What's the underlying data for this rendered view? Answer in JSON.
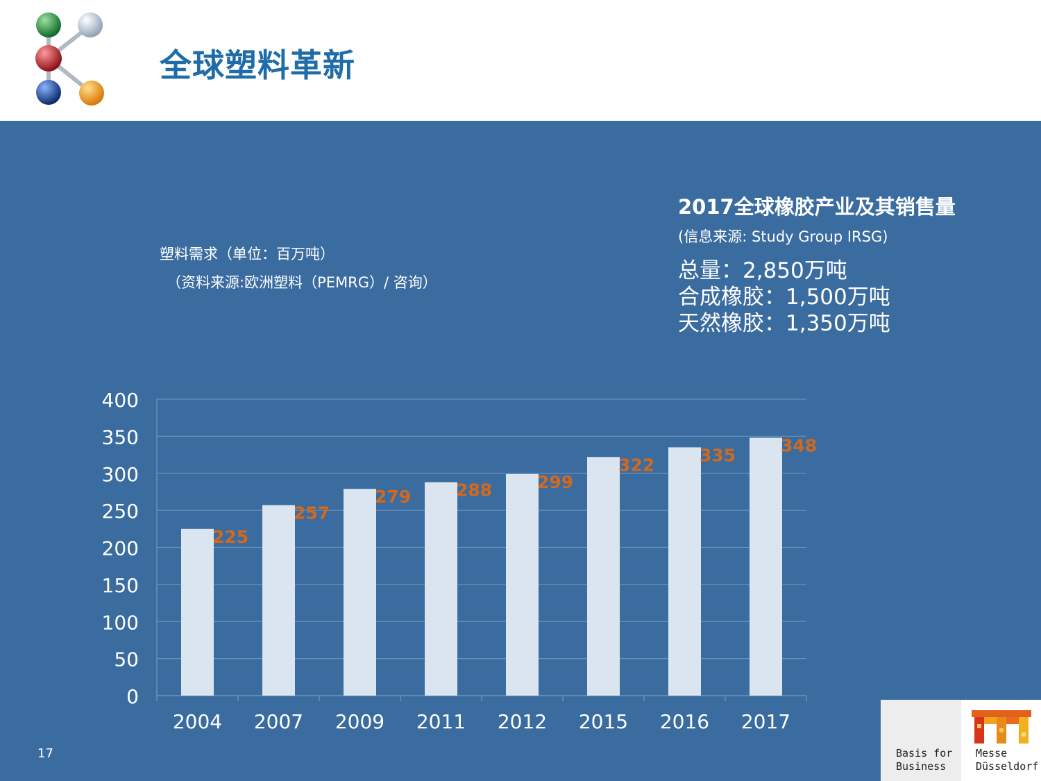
{
  "header": {
    "title": "全球塑料革新",
    "logo_name": "molecule-logo"
  },
  "left_block": {
    "caption_line1": "塑料需求（单位：百万吨）",
    "caption_line2": "（资料来源:欧洲塑料（PEMRG）/ 咨询）"
  },
  "info": {
    "title": "2017全球橡胶产业及其销售量",
    "source": "(信息来源: Study Group IRSG)",
    "lines": [
      "总量：2,850万吨",
      "合成橡胶：1,500万吨",
      "天然橡胶：1,350万吨"
    ]
  },
  "chart_data": {
    "type": "bar",
    "categories": [
      "2004",
      "2007",
      "2009",
      "2011",
      "2012",
      "2015",
      "2016",
      "2017"
    ],
    "values": [
      225,
      257,
      279,
      288,
      299,
      322,
      335,
      348
    ],
    "yticks": [
      0,
      50,
      100,
      150,
      200,
      250,
      300,
      350,
      400
    ],
    "ylim": [
      0,
      400
    ],
    "grid": true,
    "colors": {
      "bar": "#dbe5f0",
      "label": "#d2691e",
      "grid": "#6b8fb8",
      "text": "#ffffff"
    }
  },
  "footer": {
    "page_number": "17",
    "left_text_line1": "Basis for",
    "left_text_line2": "Business",
    "right_text_line1": "Messe",
    "right_text_line2": "Düsseldorf"
  },
  "colors": {
    "title": "#1f6ca8",
    "background": "#3a6ca0"
  }
}
